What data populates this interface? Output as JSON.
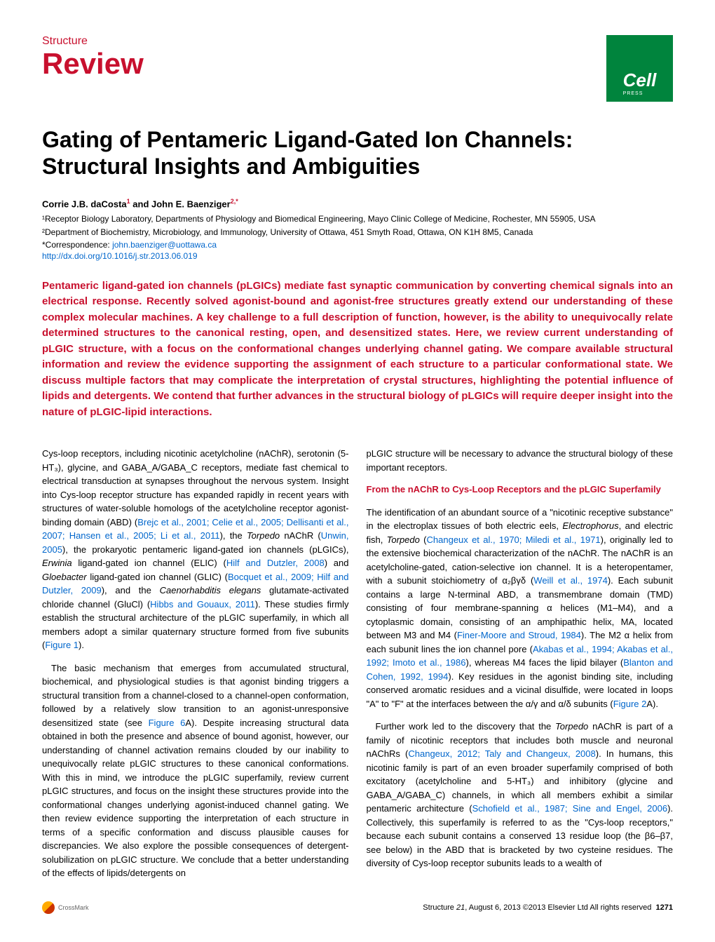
{
  "header": {
    "section_label": "Structure",
    "article_type": "Review",
    "logo_text": "Cell",
    "logo_sub": "PRESS"
  },
  "title": "Gating of Pentameric Ligand-Gated Ion Channels: Structural Insights and Ambiguities",
  "authors": "Corrie J.B. daCosta",
  "author1_sup": "1",
  "authors_and": " and John E. Baenziger",
  "author2_sup": "2,*",
  "affiliations": {
    "a1": "¹Receptor Biology Laboratory, Departments of Physiology and Biomedical Engineering, Mayo Clinic College of Medicine, Rochester, MN 55905, USA",
    "a2": "²Department of Biochemistry, Microbiology, and Immunology, University of Ottawa, 451 Smyth Road, Ottawa, ON K1H 8M5, Canada"
  },
  "correspondence_label": "*Correspondence: ",
  "correspondence_email": "john.baenziger@uottawa.ca",
  "doi": "http://dx.doi.org/10.1016/j.str.2013.06.019",
  "abstract": "Pentameric ligand-gated ion channels (pLGICs) mediate fast synaptic communication by converting chemical signals into an electrical response. Recently solved agonist-bound and agonist-free structures greatly extend our understanding of these complex molecular machines. A key challenge to a full description of function, however, is the ability to unequivocally relate determined structures to the canonical resting, open, and desensitized states. Here, we review current understanding of pLGIC structure, with a focus on the conformational changes underlying channel gating. We compare available structural information and review the evidence supporting the assignment of each structure to a particular conformational state. We discuss multiple factors that may complicate the interpretation of crystal structures, highlighting the potential influence of lipids and detergents. We contend that further advances in the structural biology of pLGICs will require deeper insight into the nature of pLGIC-lipid interactions.",
  "col1": {
    "p1a": "Cys-loop receptors, including nicotinic acetylcholine (nAChR), serotonin (5-HT₃), glycine, and GABA_A/GABA_C receptors, mediate fast chemical to electrical transduction at synapses throughout the nervous system. Insight into Cys-loop receptor structure has expanded rapidly in recent years with structures of water-soluble homologs of the acetylcholine receptor agonist-binding domain (ABD) (",
    "p1r1": "Brejc et al., 2001; Celie et al., 2005; Dellisanti et al., 2007; Hansen et al., 2005; Li et al., 2011",
    "p1b": "), the ",
    "p1i1": "Torpedo",
    "p1c": " nAChR (",
    "p1r2": "Unwin, 2005",
    "p1d": "), the prokaryotic pentameric ligand-gated ion channels (pLGICs), ",
    "p1i2": "Erwinia",
    "p1e": " ligand-gated ion channel (ELIC) (",
    "p1r3": "Hilf and Dutzler, 2008",
    "p1f": ") and ",
    "p1i3": "Gloebacter",
    "p1g": " ligand-gated ion channel (GLIC) (",
    "p1r4": "Bocquet et al., 2009; Hilf and Dutzler, 2009",
    "p1h": "), and the ",
    "p1i4": "Caenorhabditis elegans",
    "p1i": " glutamate-activated chloride channel (GluCl) (",
    "p1r5": "Hibbs and Gouaux, 2011",
    "p1j": "). These studies firmly establish the structural architecture of the pLGIC superfamily, in which all members adopt a similar quaternary structure formed from five subunits (",
    "p1r6": "Figure 1",
    "p1k": ").",
    "p2a": "The basic mechanism that emerges from accumulated structural, biochemical, and physiological studies is that agonist binding triggers a structural transition from a channel-closed to a channel-open conformation, followed by a relatively slow transition to an agonist-unresponsive desensitized state (see ",
    "p2r1": "Figure 6",
    "p2b": "A). Despite increasing structural data obtained in both the presence and absence of bound agonist, however, our understanding of channel activation remains clouded by our inability to unequivocally relate pLGIC structures to these canonical conformations. With this in mind, we introduce the pLGIC superfamily, review current pLGIC structures, and focus on the insight these structures provide into the conformational changes underlying agonist-induced channel gating. We then review evidence supporting the interpretation of each structure in terms of a specific conformation and discuss plausible causes for discrepancies. We also explore the possible consequences of detergent-solubilization on pLGIC structure. We conclude that a better understanding of the effects of lipids/detergents on"
  },
  "col2": {
    "p1": "pLGIC structure will be necessary to advance the structural biology of these important receptors.",
    "heading1": "From the nAChR to Cys-Loop Receptors and the pLGIC Superfamily",
    "p2a": "The identification of an abundant source of a \"nicotinic receptive substance\" in the electroplax tissues of both electric eels, ",
    "p2i1": "Electrophorus",
    "p2b": ", and electric fish, ",
    "p2i2": "Torpedo",
    "p2c": " (",
    "p2r1": "Changeux et al., 1970; Miledi et al., 1971",
    "p2d": "), originally led to the extensive biochemical characterization of the nAChR. The nAChR is an acetylcholine-gated, cation-selective ion channel. It is a heteropentamer, with a subunit stoichiometry of α₂βγδ (",
    "p2r2": "Weill et al., 1974",
    "p2e": "). Each subunit contains a large N-terminal ABD, a transmembrane domain (TMD) consisting of four membrane-spanning α helices (M1–M4), and a cytoplasmic domain, consisting of an amphipathic helix, MA, located between M3 and M4 (",
    "p2r3": "Finer-Moore and Stroud, 1984",
    "p2f": "). The M2 α helix from each subunit lines the ion channel pore (",
    "p2r4": "Akabas et al., 1994; Akabas et al., 1992; Imoto et al., 1986",
    "p2g": "), whereas M4 faces the lipid bilayer (",
    "p2r5": "Blanton and Cohen, 1992, 1994",
    "p2h": "). Key residues in the agonist binding site, including conserved aromatic residues and a vicinal disulfide, were located in loops \"A\" to \"F\" at the interfaces between the α/γ and α/δ subunits (",
    "p2r6": "Figure 2",
    "p2i": "A).",
    "p3a": "Further work led to the discovery that the ",
    "p3i1": "Torpedo",
    "p3b": " nAChR is part of a family of nicotinic receptors that includes both muscle and neuronal nAChRs (",
    "p3r1": "Changeux, 2012; Taly and Changeux, 2008",
    "p3c": "). In humans, this nicotinic family is part of an even broader superfamily comprised of both excitatory (acetylcholine and 5-HT₃) and inhibitory (glycine and GABA_A/GABA_C) channels, in which all members exhibit a similar pentameric architecture (",
    "p3r2": "Schofield et al., 1987; Sine and Engel, 2006",
    "p3d": "). Collectively, this superfamily is referred to as the \"Cys-loop receptors,\" because each subunit contains a conserved 13 residue loop (the β6–β7, see below) in the ABD that is bracketed by two cysteine residues. The diversity of Cys-loop receptor subunits leads to a wealth of"
  },
  "footer": {
    "crossmark": "CrossMark",
    "citation_journal": "Structure ",
    "citation_vol": "21",
    "citation_date": ", August 6, 2013 ©2013 Elsevier Ltd All rights reserved",
    "page_num": "1271"
  },
  "colors": {
    "brand_red": "#c8102e",
    "cell_green": "#00843d",
    "link_blue": "#0066cc"
  }
}
